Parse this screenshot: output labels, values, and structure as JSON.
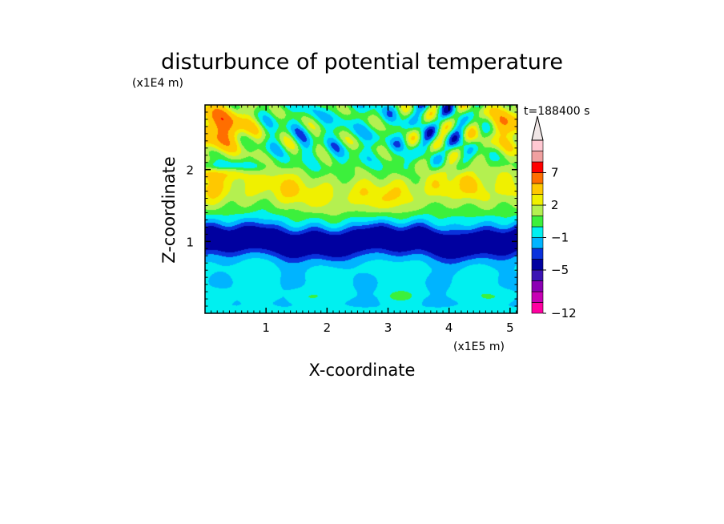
{
  "chart_data": {
    "type": "heatmap",
    "title": "disturbunce of potential temperature",
    "time_label": "t=188400 s",
    "xlabel": "X-coordinate",
    "ylabel": "Z-coordinate",
    "x_unit": "(x1E5 m)",
    "y_unit": "(x1E4 m)",
    "xlim": [
      0,
      5.12
    ],
    "ylim": [
      0,
      2.9
    ],
    "x_ticks": [
      "1",
      "2",
      "3",
      "4",
      "5"
    ],
    "x_tick_values": [
      1,
      2,
      3,
      4,
      5
    ],
    "y_ticks": [
      "1",
      "2"
    ],
    "y_tick_values": [
      1,
      2
    ],
    "colorbar": {
      "extend": "max",
      "levels": [
        -12,
        -11,
        -9,
        -7,
        -5,
        -3,
        -2,
        -1,
        0,
        1,
        2,
        3,
        5,
        7,
        9,
        11
      ],
      "colors": [
        "#ff00a0",
        "#c800b4",
        "#8c00b4",
        "#3c14b4",
        "#0000a0",
        "#0a32dc",
        "#00b4ff",
        "#00f0f0",
        "#3cf03c",
        "#b4f050",
        "#f0f000",
        "#ffc800",
        "#ff6e00",
        "#ff0000",
        "#f0a0a0",
        "#ffc8d2"
      ],
      "extend_color": "#f0e6e6",
      "labels": [
        "-12",
        "-5",
        "-1",
        "2",
        "7"
      ],
      "label_values": [
        -12,
        -5,
        -1,
        2,
        7
      ]
    },
    "field_features": {
      "cold_layer_center_z": 1.0,
      "cold_layer_min": -5,
      "warm_layer_center_z": 1.7,
      "warm_layer_max": 3,
      "upper_corner_warm_max": 5,
      "upper_wave_cold_min": -5
    }
  }
}
